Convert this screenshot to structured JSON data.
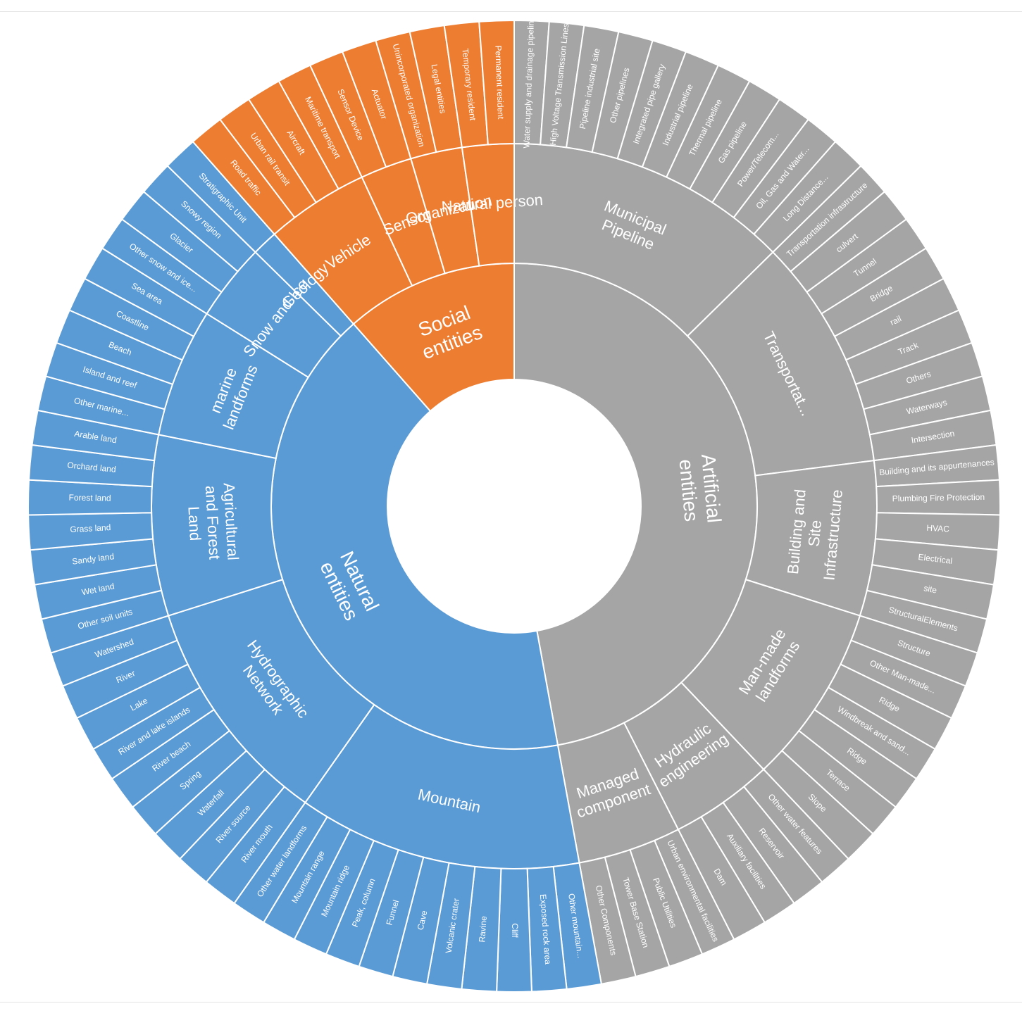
{
  "chart_data": {
    "type": "sunburst",
    "colors": {
      "Natural entities": "#5b9bd5",
      "Social entities": "#ed7d31",
      "Artificial entities": "#a5a5a5"
    },
    "hierarchy": [
      {
        "name": "Artificial entities",
        "children": [
          {
            "name": "Municipal Pipeline",
            "children": [
              "Water supply and drainage pipeline",
              "High Voltage Transmission Lines",
              "Pipeline industrial site",
              "Other pipelines",
              "Integrated pipe gallery",
              "Industrial pipeline",
              "Thermal pipeline",
              "Gas pipeline",
              "Power/Telecom...",
              "Oil, Gas and Water...",
              "Long Distance..."
            ]
          },
          {
            "name": "Transportat...",
            "children": [
              "Transportation infrastructure",
              "culvert",
              "Tunnel",
              "Bridge",
              "rail",
              "Track",
              "Others",
              "Waterways",
              "Intersection"
            ]
          },
          {
            "name": "Building and Site Infrastructure",
            "children": [
              "Building and its appurtenances",
              "Plumbing Fire Protection",
              "HVAC",
              "Electrical",
              "site",
              "StructuralElements"
            ]
          },
          {
            "name": "Man-made landforms",
            "children": [
              "Structure",
              "Other Man-made...",
              "Ridge",
              "Windbreak and sand...",
              "Ridge",
              "Terrace",
              "Slope"
            ]
          },
          {
            "name": "Hydraulic engineering",
            "children": [
              "Other water features",
              "Reservoir",
              "Auxiliary facilities",
              "Dam"
            ]
          },
          {
            "name": "Managed component",
            "children": [
              "Urban environmental facilities",
              "Public Utilities",
              "Tower Base Station",
              "Other Components"
            ]
          }
        ]
      },
      {
        "name": "Natural entities",
        "children": [
          {
            "name": "Mountain",
            "children": [
              "Other mountain...",
              "Exposed rock area",
              "Cliff",
              "Ravine",
              "Volcanic crater",
              "Cave",
              "Funnel",
              "Peak, column",
              "Mountain ridge",
              "Mountain range",
              "Other water landforms"
            ]
          },
          {
            "name": "Hydrographic Network",
            "children": [
              "River mouth",
              "River source",
              "Waterfall",
              "Spring",
              "River beach",
              "River and lake islands",
              "Lake",
              "River",
              "Watershed"
            ]
          },
          {
            "name": "Agricultural and Forest Land",
            "children": [
              "Other soil units",
              "Wet land",
              "Sandy land",
              "Grass land",
              "Forest land",
              "Orchard land",
              "Arable land"
            ]
          },
          {
            "name": "marine landforms",
            "children": [
              "Other marine...",
              "Island and reef",
              "Beach",
              "Coastline",
              "Sea area"
            ]
          },
          {
            "name": "Snow and Ice",
            "children": [
              "Other snow and ice...",
              "Glacier",
              "Snowy region"
            ]
          },
          {
            "name": "Geology",
            "children": [
              "Stratigraphic Unit"
            ]
          }
        ]
      },
      {
        "name": "Social entities",
        "children": [
          {
            "name": "Vehicle",
            "children": [
              "Road traffic",
              "Urban rail transit",
              "Aircraft",
              "Maritime transport"
            ]
          },
          {
            "name": "Sensor",
            "children": [
              "Sensor Device",
              "Actuator"
            ]
          },
          {
            "name": "Organization",
            "children": [
              "Unincorporated organization",
              "Legal entities"
            ]
          },
          {
            "name": "Natural person",
            "children": [
              "Temporary resident",
              "Permanent resident"
            ]
          }
        ]
      }
    ]
  }
}
